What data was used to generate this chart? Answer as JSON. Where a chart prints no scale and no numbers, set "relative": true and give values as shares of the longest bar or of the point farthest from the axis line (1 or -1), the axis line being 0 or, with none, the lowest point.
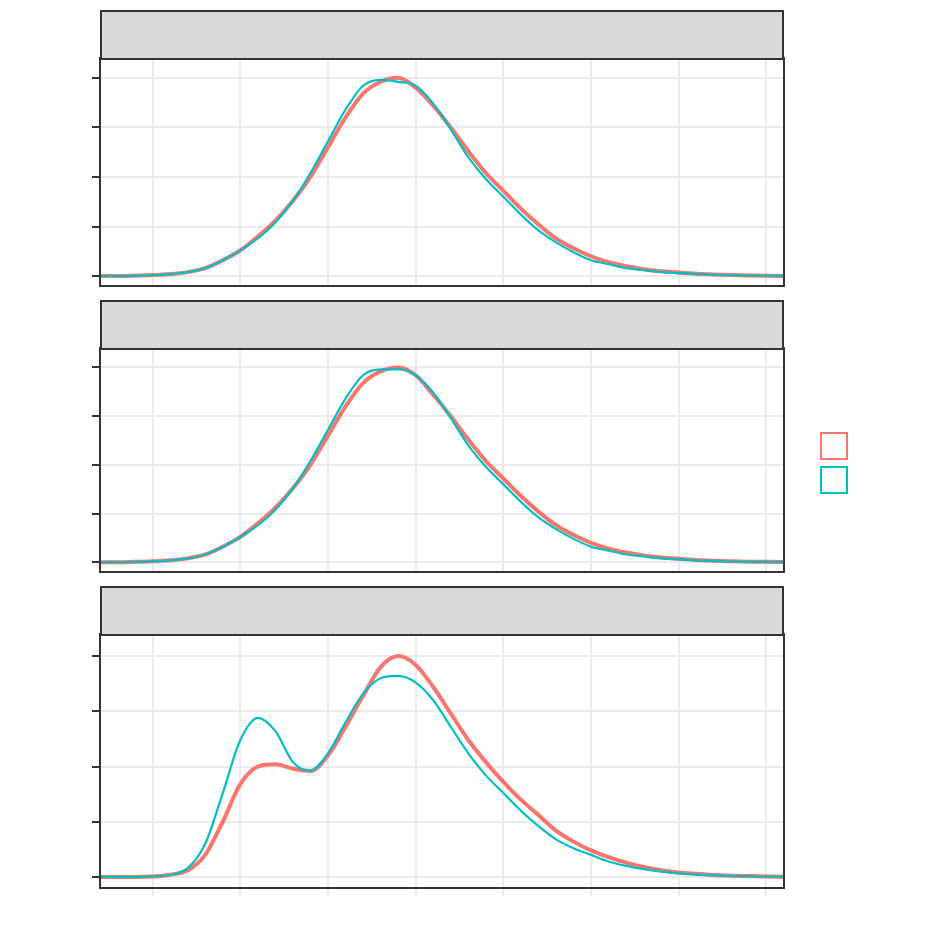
{
  "chart_data": [
    {
      "type": "line",
      "relative": true,
      "grid": true,
      "legend": false,
      "tick_labels": false,
      "marker": "none",
      "categories": [
        null,
        null,
        null,
        null,
        null,
        null,
        null,
        null,
        null,
        null,
        null,
        null,
        null,
        null,
        null,
        null,
        null,
        null,
        null,
        null,
        null,
        null,
        null,
        null,
        null,
        null,
        null,
        null,
        null,
        null,
        null,
        null,
        null,
        null,
        null,
        null,
        null,
        null,
        null,
        null
      ],
      "series": [
        {
          "color": "#f8766d",
          "values": [
            0,
            0,
            0.002,
            0.005,
            0.01,
            0.02,
            0.04,
            0.08,
            0.13,
            0.2,
            0.28,
            0.38,
            0.5,
            0.65,
            0.8,
            0.92,
            0.98,
            1.0,
            0.95,
            0.86,
            0.75,
            0.63,
            0.52,
            0.43,
            0.34,
            0.26,
            0.19,
            0.14,
            0.1,
            0.07,
            0.05,
            0.035,
            0.025,
            0.018,
            0.012,
            0.008,
            0.005,
            0.003,
            0.002,
            0.001
          ]
        },
        {
          "color": "#00bfc4",
          "values": [
            0,
            0,
            0.002,
            0.005,
            0.01,
            0.02,
            0.04,
            0.08,
            0.13,
            0.19,
            0.27,
            0.38,
            0.52,
            0.68,
            0.84,
            0.96,
            0.99,
            0.98,
            0.96,
            0.87,
            0.74,
            0.6,
            0.49,
            0.4,
            0.31,
            0.23,
            0.17,
            0.12,
            0.08,
            0.06,
            0.04,
            0.03,
            0.02,
            0.015,
            0.01,
            0.007,
            0.004,
            0.003,
            0.002,
            0.001
          ]
        }
      ]
    },
    {
      "type": "line",
      "relative": true,
      "grid": true,
      "legend": false,
      "tick_labels": false,
      "marker": "none",
      "categories": [
        null,
        null,
        null,
        null,
        null,
        null,
        null,
        null,
        null,
        null,
        null,
        null,
        null,
        null,
        null,
        null,
        null,
        null,
        null,
        null,
        null,
        null,
        null,
        null,
        null,
        null,
        null,
        null,
        null,
        null,
        null,
        null,
        null,
        null,
        null,
        null,
        null,
        null,
        null,
        null
      ],
      "series": [
        {
          "color": "#f8766d",
          "values": [
            0,
            0,
            0.002,
            0.005,
            0.01,
            0.02,
            0.04,
            0.08,
            0.13,
            0.2,
            0.28,
            0.38,
            0.5,
            0.65,
            0.8,
            0.92,
            0.98,
            1.0,
            0.96,
            0.86,
            0.75,
            0.63,
            0.52,
            0.43,
            0.34,
            0.26,
            0.19,
            0.14,
            0.1,
            0.07,
            0.05,
            0.035,
            0.025,
            0.018,
            0.012,
            0.008,
            0.005,
            0.003,
            0.002,
            0.001
          ]
        },
        {
          "color": "#00bfc4",
          "values": [
            0,
            0,
            0.002,
            0.005,
            0.01,
            0.02,
            0.04,
            0.08,
            0.13,
            0.19,
            0.27,
            0.38,
            0.52,
            0.68,
            0.84,
            0.96,
            0.99,
            0.99,
            0.96,
            0.87,
            0.74,
            0.6,
            0.49,
            0.4,
            0.31,
            0.23,
            0.17,
            0.12,
            0.08,
            0.06,
            0.04,
            0.03,
            0.02,
            0.015,
            0.01,
            0.007,
            0.004,
            0.003,
            0.002,
            0.001
          ]
        }
      ]
    },
    {
      "type": "line",
      "relative": true,
      "grid": true,
      "legend": false,
      "tick_labels": false,
      "marker": "none",
      "categories": [
        null,
        null,
        null,
        null,
        null,
        null,
        null,
        null,
        null,
        null,
        null,
        null,
        null,
        null,
        null,
        null,
        null,
        null,
        null,
        null,
        null,
        null,
        null,
        null,
        null,
        null,
        null,
        null,
        null,
        null,
        null,
        null,
        null,
        null,
        null,
        null,
        null,
        null,
        null,
        null
      ],
      "series": [
        {
          "color": "#f8766d",
          "values": [
            0,
            0,
            0,
            0.002,
            0.01,
            0.03,
            0.1,
            0.25,
            0.42,
            0.5,
            0.51,
            0.49,
            0.48,
            0.55,
            0.68,
            0.82,
            0.95,
            1.0,
            0.96,
            0.86,
            0.74,
            0.62,
            0.52,
            0.43,
            0.35,
            0.28,
            0.21,
            0.16,
            0.12,
            0.09,
            0.065,
            0.045,
            0.03,
            0.02,
            0.014,
            0.009,
            0.006,
            0.004,
            0.002,
            0.001
          ]
        },
        {
          "color": "#00bfc4",
          "values": [
            0,
            0,
            0,
            0.002,
            0.01,
            0.04,
            0.15,
            0.38,
            0.62,
            0.72,
            0.66,
            0.52,
            0.48,
            0.56,
            0.7,
            0.83,
            0.9,
            0.91,
            0.88,
            0.8,
            0.68,
            0.56,
            0.46,
            0.38,
            0.3,
            0.23,
            0.17,
            0.13,
            0.1,
            0.07,
            0.05,
            0.035,
            0.024,
            0.016,
            0.011,
            0.007,
            0.005,
            0.003,
            0.002,
            0.001
          ]
        }
      ]
    }
  ]
}
